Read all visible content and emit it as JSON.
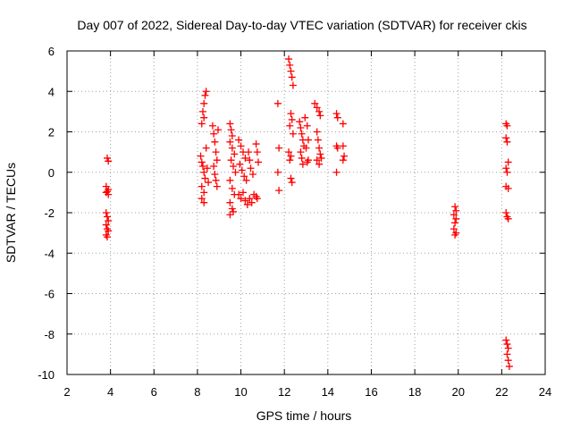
{
  "chart_data": {
    "type": "scatter",
    "title": "Day 007 of 2022, Sidereal Day-to-day VTEC variation (SDTVAR) for receiver ckis",
    "xlabel": "GPS time / hours",
    "ylabel": "SDTVAR / TECUs",
    "xlim": [
      2,
      24
    ],
    "ylim": [
      -10,
      6
    ],
    "xticks": [
      "2",
      "4",
      "6",
      "8",
      "10",
      "12",
      "14",
      "16",
      "18",
      "20",
      "22",
      "24"
    ],
    "yticks": [
      "6",
      "4",
      "2",
      "0",
      "-2",
      "-4",
      "-6",
      "-8",
      "-10"
    ],
    "grid": true,
    "marker": "plus",
    "marker_color": "#ff0000",
    "series": [
      {
        "name": "SDTVAR",
        "points": [
          [
            3.85,
            0.7
          ],
          [
            3.9,
            0.55
          ],
          [
            3.8,
            -0.7
          ],
          [
            3.9,
            -0.85
          ],
          [
            3.85,
            -0.95
          ],
          [
            3.8,
            -1.0
          ],
          [
            3.9,
            -1.1
          ],
          [
            3.8,
            -2.0
          ],
          [
            3.85,
            -2.2
          ],
          [
            3.9,
            -2.4
          ],
          [
            3.8,
            -2.6
          ],
          [
            3.85,
            -2.8
          ],
          [
            3.9,
            -2.9
          ],
          [
            3.8,
            -3.1
          ],
          [
            3.85,
            -3.2
          ],
          [
            8.2,
            2.4
          ],
          [
            8.3,
            3.4
          ],
          [
            8.35,
            3.8
          ],
          [
            8.4,
            4.0
          ],
          [
            8.25,
            3.0
          ],
          [
            8.3,
            2.7
          ],
          [
            8.15,
            0.8
          ],
          [
            8.2,
            0.5
          ],
          [
            8.25,
            0.3
          ],
          [
            8.3,
            0.0
          ],
          [
            8.35,
            -0.3
          ],
          [
            8.2,
            -0.7
          ],
          [
            8.3,
            -1.0
          ],
          [
            8.2,
            -1.3
          ],
          [
            8.3,
            -1.5
          ],
          [
            8.4,
            1.2
          ],
          [
            8.45,
            0.2
          ],
          [
            8.5,
            -0.5
          ],
          [
            8.7,
            2.3
          ],
          [
            8.75,
            1.9
          ],
          [
            8.8,
            1.5
          ],
          [
            8.85,
            1.0
          ],
          [
            8.9,
            0.6
          ],
          [
            8.75,
            0.3
          ],
          [
            8.8,
            -0.1
          ],
          [
            8.85,
            -0.4
          ],
          [
            8.9,
            -0.7
          ],
          [
            8.95,
            2.1
          ],
          [
            9.5,
            2.4
          ],
          [
            9.55,
            2.1
          ],
          [
            9.6,
            1.8
          ],
          [
            9.5,
            1.5
          ],
          [
            9.6,
            1.2
          ],
          [
            9.7,
            0.9
          ],
          [
            9.55,
            0.6
          ],
          [
            9.65,
            0.3
          ],
          [
            9.75,
            0.0
          ],
          [
            9.5,
            -0.4
          ],
          [
            9.6,
            -0.8
          ],
          [
            9.7,
            -1.1
          ],
          [
            9.5,
            -1.5
          ],
          [
            9.6,
            -1.8
          ],
          [
            9.5,
            -2.1
          ],
          [
            9.65,
            -1.95
          ],
          [
            9.9,
            1.6
          ],
          [
            10.0,
            1.3
          ],
          [
            10.1,
            1.0
          ],
          [
            10.2,
            0.7
          ],
          [
            9.95,
            0.4
          ],
          [
            10.05,
            0.1
          ],
          [
            10.15,
            -0.2
          ],
          [
            10.25,
            -0.4
          ],
          [
            9.9,
            -1.1
          ],
          [
            10.0,
            -1.3
          ],
          [
            10.1,
            -1.0
          ],
          [
            10.2,
            -1.4
          ],
          [
            10.3,
            -1.6
          ],
          [
            10.4,
            -1.3
          ],
          [
            10.5,
            -1.5
          ],
          [
            10.35,
            1.0
          ],
          [
            10.4,
            0.6
          ],
          [
            10.45,
            0.2
          ],
          [
            10.55,
            -0.1
          ],
          [
            10.7,
            1.4
          ],
          [
            10.75,
            1.0
          ],
          [
            10.8,
            0.5
          ],
          [
            10.6,
            -1.1
          ],
          [
            10.7,
            -1.2
          ],
          [
            10.75,
            -1.3
          ],
          [
            11.7,
            3.4
          ],
          [
            11.75,
            1.2
          ],
          [
            11.7,
            0.0
          ],
          [
            11.75,
            -0.9
          ],
          [
            12.2,
            5.6
          ],
          [
            12.25,
            5.3
          ],
          [
            12.3,
            5.0
          ],
          [
            12.35,
            4.7
          ],
          [
            12.4,
            4.3
          ],
          [
            12.3,
            2.9
          ],
          [
            12.35,
            2.6
          ],
          [
            12.25,
            2.3
          ],
          [
            12.4,
            1.9
          ],
          [
            12.2,
            1.0
          ],
          [
            12.3,
            0.8
          ],
          [
            12.25,
            0.6
          ],
          [
            12.3,
            -0.3
          ],
          [
            12.35,
            -0.5
          ],
          [
            12.7,
            2.5
          ],
          [
            12.75,
            2.2
          ],
          [
            12.8,
            1.9
          ],
          [
            12.85,
            1.6
          ],
          [
            12.9,
            1.3
          ],
          [
            12.75,
            1.0
          ],
          [
            12.8,
            0.7
          ],
          [
            12.85,
            0.4
          ],
          [
            12.95,
            2.7
          ],
          [
            13.05,
            2.3
          ],
          [
            13.1,
            1.6
          ],
          [
            13.0,
            1.2
          ],
          [
            13.1,
            0.6
          ],
          [
            13.05,
            0.5
          ],
          [
            13.4,
            3.4
          ],
          [
            13.5,
            3.2
          ],
          [
            13.6,
            3.0
          ],
          [
            13.65,
            2.8
          ],
          [
            13.5,
            2.0
          ],
          [
            13.55,
            1.6
          ],
          [
            13.6,
            1.2
          ],
          [
            13.65,
            0.9
          ],
          [
            13.5,
            0.6
          ],
          [
            13.6,
            0.4
          ],
          [
            13.7,
            0.7
          ],
          [
            14.4,
            2.9
          ],
          [
            14.45,
            2.7
          ],
          [
            14.4,
            1.3
          ],
          [
            14.45,
            1.2
          ],
          [
            14.4,
            0.0
          ],
          [
            14.7,
            2.4
          ],
          [
            14.7,
            1.3
          ],
          [
            14.75,
            0.8
          ],
          [
            14.7,
            0.6
          ],
          [
            19.85,
            -1.7
          ],
          [
            19.9,
            -1.9
          ],
          [
            19.8,
            -2.1
          ],
          [
            19.9,
            -2.3
          ],
          [
            19.85,
            -2.5
          ],
          [
            19.8,
            -2.8
          ],
          [
            19.9,
            -3.0
          ],
          [
            19.85,
            -3.1
          ],
          [
            22.2,
            2.4
          ],
          [
            22.25,
            2.3
          ],
          [
            22.2,
            1.7
          ],
          [
            22.25,
            1.5
          ],
          [
            22.3,
            0.5
          ],
          [
            22.2,
            0.2
          ],
          [
            22.25,
            0.0
          ],
          [
            22.2,
            -0.7
          ],
          [
            22.3,
            -0.8
          ],
          [
            22.2,
            -2.0
          ],
          [
            22.25,
            -2.2
          ],
          [
            22.3,
            -2.3
          ],
          [
            22.2,
            -8.3
          ],
          [
            22.25,
            -8.5
          ],
          [
            22.3,
            -8.7
          ],
          [
            22.25,
            -9.0
          ],
          [
            22.3,
            -9.3
          ],
          [
            22.35,
            -9.6
          ]
        ]
      }
    ]
  }
}
